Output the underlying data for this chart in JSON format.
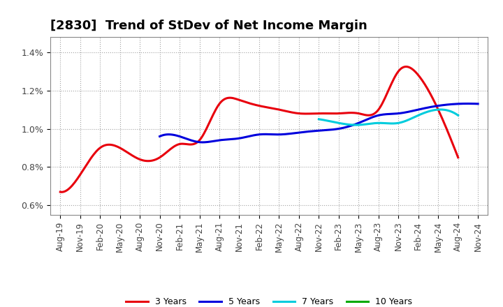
{
  "title": "[2830]  Trend of StDev of Net Income Margin",
  "x_labels": [
    "Aug-19",
    "Nov-19",
    "Feb-20",
    "May-20",
    "Aug-20",
    "Nov-20",
    "Feb-21",
    "May-21",
    "Aug-21",
    "Nov-21",
    "Feb-22",
    "May-22",
    "Aug-22",
    "Nov-22",
    "Feb-23",
    "May-23",
    "Aug-23",
    "Nov-23",
    "Feb-24",
    "May-24",
    "Aug-24",
    "Nov-24"
  ],
  "ylim": [
    0.0055,
    0.0148
  ],
  "yticks": [
    0.006,
    0.008,
    0.01,
    0.012,
    0.014
  ],
  "ytick_labels": [
    "0.6%",
    "0.8%",
    "1.0%",
    "1.2%",
    "1.4%"
  ],
  "series": {
    "3 Years": {
      "color": "#e8000d",
      "values": [
        0.0067,
        0.0076,
        0.009,
        0.009,
        0.0084,
        0.0085,
        0.0092,
        0.0094,
        0.0113,
        0.0115,
        0.0112,
        0.011,
        0.0108,
        0.0108,
        0.0108,
        0.0108,
        0.011,
        0.013,
        0.0128,
        0.011,
        0.0085,
        null
      ]
    },
    "5 Years": {
      "color": "#0000dd",
      "values": [
        null,
        null,
        null,
        null,
        null,
        0.0096,
        0.0096,
        0.0093,
        0.0094,
        0.0095,
        0.0097,
        0.0097,
        0.0098,
        0.0099,
        0.01,
        0.0103,
        0.0107,
        0.0108,
        0.011,
        0.0112,
        0.0113,
        0.0113
      ]
    },
    "7 Years": {
      "color": "#00ccdd",
      "values": [
        null,
        null,
        null,
        null,
        null,
        null,
        null,
        null,
        null,
        null,
        null,
        null,
        null,
        0.0105,
        0.0103,
        0.0102,
        0.0103,
        0.0103,
        0.0107,
        0.011,
        0.0107,
        null
      ]
    },
    "10 Years": {
      "color": "#00aa00",
      "values": [
        null,
        null,
        null,
        null,
        null,
        null,
        null,
        null,
        null,
        null,
        null,
        null,
        null,
        null,
        null,
        null,
        null,
        null,
        null,
        null,
        null,
        null
      ]
    }
  },
  "background_color": "#ffffff",
  "grid_color": "#999999",
  "title_fontsize": 13,
  "tick_fontsize": 8.5,
  "linewidth": 2.2
}
